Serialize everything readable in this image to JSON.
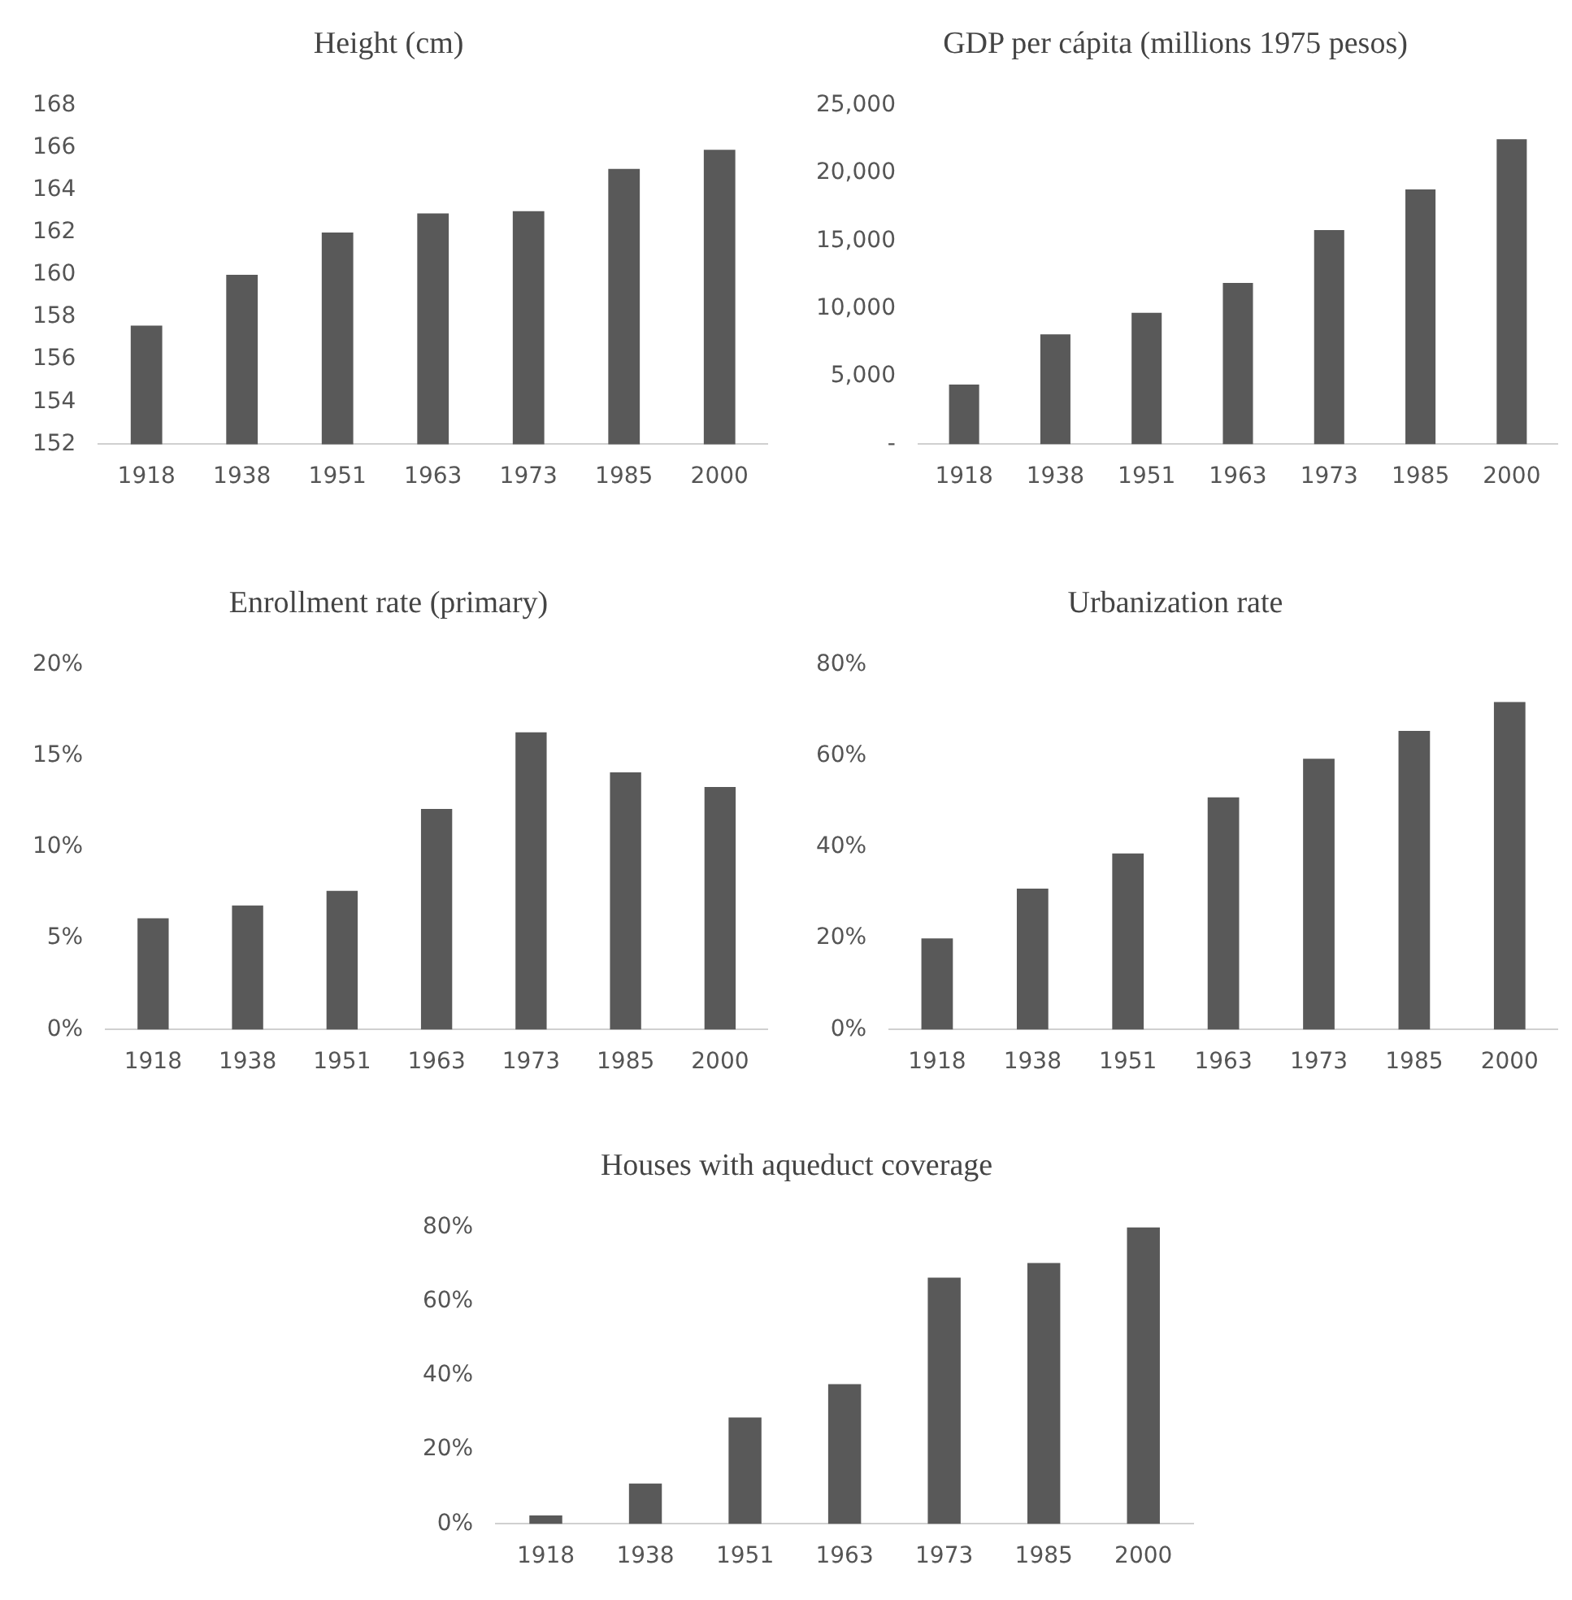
{
  "chart_data": [
    {
      "type": "bar",
      "title": "Height (cm)",
      "categories": [
        "1918",
        "1938",
        "1951",
        "1963",
        "1973",
        "1985",
        "2000"
      ],
      "values": [
        157.6,
        160,
        162,
        162.9,
        163,
        165,
        165.9
      ],
      "color": "#595959",
      "ylim": [
        152,
        168
      ],
      "yticks": [
        152,
        154,
        156,
        158,
        160,
        162,
        164,
        166,
        168
      ]
    },
    {
      "type": "bar",
      "title": "GDP per cápita (millions 1975 pesos)",
      "categories": [
        "1918",
        "1938",
        "1951",
        "1963",
        "1973",
        "1985",
        "2000"
      ],
      "values": [
        4400,
        8100,
        9700,
        11900,
        15800,
        18800,
        22500
      ],
      "color": "#595959",
      "ylim": [
        0,
        25000
      ],
      "yticks": [
        {
          "value": 0,
          "label": "-"
        },
        {
          "value": 5000,
          "label": "5,000"
        },
        {
          "value": 10000,
          "label": "10,000"
        },
        {
          "value": 15000,
          "label": "15,000"
        },
        {
          "value": 20000,
          "label": "20,000"
        },
        {
          "value": 25000,
          "label": "25,000"
        }
      ]
    },
    {
      "type": "bar",
      "title": "Enrollment rate (primary)",
      "categories": [
        "1918",
        "1938",
        "1951",
        "1963",
        "1973",
        "1985",
        "2000"
      ],
      "values": [
        6.1,
        6.8,
        7.6,
        12.1,
        16.3,
        14.1,
        13.3
      ],
      "color": "#595959",
      "ylim": [
        0,
        20
      ],
      "yticks": [
        {
          "value": 0,
          "label": "0%"
        },
        {
          "value": 5,
          "label": "5%"
        },
        {
          "value": 10,
          "label": "10%"
        },
        {
          "value": 15,
          "label": "15%"
        },
        {
          "value": 20,
          "label": "20%"
        }
      ]
    },
    {
      "type": "bar",
      "title": "Urbanization rate",
      "categories": [
        "1918",
        "1938",
        "1951",
        "1963",
        "1973",
        "1985",
        "2000"
      ],
      "values": [
        20,
        30.9,
        38.6,
        50.9,
        59.4,
        65.5,
        71.8
      ],
      "color": "#595959",
      "ylim": [
        0,
        80
      ],
      "yticks": [
        {
          "value": 0,
          "label": "0%"
        },
        {
          "value": 20,
          "label": "20%"
        },
        {
          "value": 40,
          "label": "40%"
        },
        {
          "value": 60,
          "label": "60%"
        },
        {
          "value": 80,
          "label": "80%"
        }
      ]
    },
    {
      "type": "bar",
      "title": "Houses with aqueduct coverage",
      "categories": [
        "1918",
        "1938",
        "1951",
        "1963",
        "1973",
        "1985",
        "2000"
      ],
      "values": [
        2.3,
        10.9,
        28.7,
        37.7,
        66.4,
        70.4,
        80
      ],
      "color": "#595959",
      "ylim": [
        0,
        80
      ],
      "yticks": [
        {
          "value": 0,
          "label": "0%"
        },
        {
          "value": 20,
          "label": "20%"
        },
        {
          "value": 40,
          "label": "40%"
        },
        {
          "value": 60,
          "label": "60%"
        },
        {
          "value": 80,
          "label": "80%"
        }
      ]
    }
  ]
}
